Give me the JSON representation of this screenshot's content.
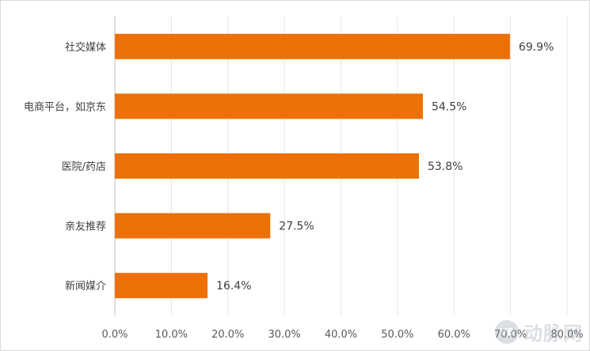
{
  "chart_data": {
    "type": "bar",
    "orientation": "horizontal",
    "categories": [
      "社交媒体",
      "电商平台，如京东",
      "医院/药店",
      "亲友推荐",
      "新闻媒介"
    ],
    "values": [
      69.9,
      54.5,
      53.8,
      27.5,
      16.4
    ],
    "value_labels": [
      "69.9%",
      "54.5%",
      "53.8%",
      "27.5%",
      "16.4%"
    ],
    "xlim": [
      0,
      80
    ],
    "x_ticks": [
      0,
      10,
      20,
      30,
      40,
      50,
      60,
      70,
      80
    ],
    "x_tick_labels": [
      "0.0%",
      "10.0%",
      "20.0%",
      "30.0%",
      "40.0%",
      "50.0%",
      "60.0%",
      "70.0%",
      "80.0%"
    ],
    "grid": "vertical",
    "legend": "none",
    "bar_color": "#ED7004",
    "title": "",
    "xlabel": "",
    "ylabel": ""
  },
  "watermark": {
    "logo_text": "VB",
    "text": "动脉网"
  }
}
